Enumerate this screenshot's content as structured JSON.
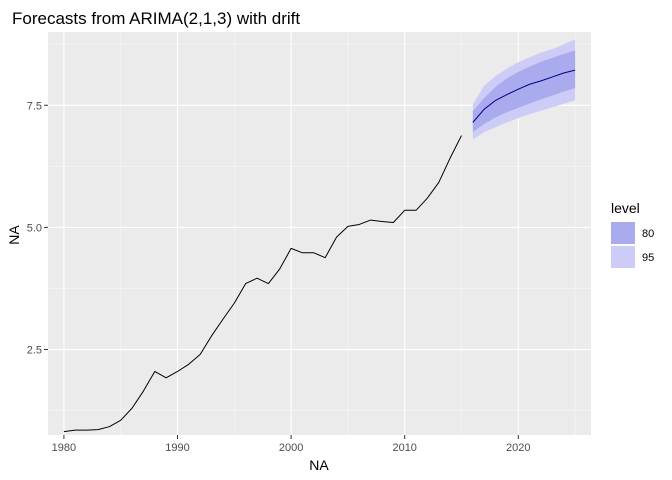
{
  "chart_data": {
    "type": "line",
    "title": "Forecasts from ARIMA(2,1,3) with drift",
    "xlabel": "NA",
    "ylabel": "NA",
    "xlim": [
      1978.6,
      2026.4
    ],
    "ylim": [
      0.75,
      9.0
    ],
    "x_ticks": [
      {
        "value": 1980,
        "label": "1980"
      },
      {
        "value": 1990,
        "label": "1990"
      },
      {
        "value": 2000,
        "label": "2000"
      },
      {
        "value": 2010,
        "label": "2010"
      },
      {
        "value": 2020,
        "label": "2020"
      }
    ],
    "y_ticks": [
      {
        "value": 2.5,
        "label": "2.5"
      },
      {
        "value": 5.0,
        "label": "5.0"
      },
      {
        "value": 7.5,
        "label": "7.5"
      }
    ],
    "grid": true,
    "series": [
      {
        "role": "observed",
        "color": "#000000",
        "x": [
          1980,
          1981,
          1982,
          1983,
          1984,
          1985,
          1986,
          1987,
          1988,
          1989,
          1990,
          1991,
          1992,
          1993,
          1994,
          1995,
          1996,
          1997,
          1998,
          1999,
          2000,
          2001,
          2002,
          2003,
          2004,
          2005,
          2006,
          2007,
          2008,
          2009,
          2010,
          2011,
          2012,
          2013,
          2014,
          2015
        ],
        "values": [
          0.82,
          0.85,
          0.85,
          0.86,
          0.92,
          1.05,
          1.3,
          1.65,
          2.05,
          1.92,
          2.05,
          2.2,
          2.4,
          2.78,
          3.12,
          3.45,
          3.85,
          3.96,
          3.85,
          4.15,
          4.57,
          4.48,
          4.48,
          4.38,
          4.8,
          5.02,
          5.06,
          5.15,
          5.12,
          5.1,
          5.35,
          5.35,
          5.6,
          5.92,
          6.42,
          6.88
        ]
      },
      {
        "role": "forecast",
        "color": "#00008b",
        "x": [
          2016,
          2017,
          2018,
          2019,
          2020,
          2021,
          2022,
          2023,
          2024,
          2025
        ],
        "values": [
          7.15,
          7.42,
          7.6,
          7.72,
          7.83,
          7.93,
          8.0,
          8.08,
          8.16,
          8.22
        ]
      }
    ],
    "intervals": [
      {
        "level": "95",
        "color": "#ccccf7",
        "x": [
          2016,
          2017,
          2018,
          2019,
          2020,
          2021,
          2022,
          2023,
          2024,
          2025
        ],
        "lower": [
          6.8,
          6.95,
          7.05,
          7.15,
          7.24,
          7.32,
          7.39,
          7.46,
          7.53,
          7.6
        ],
        "upper": [
          7.52,
          7.9,
          8.1,
          8.25,
          8.38,
          8.48,
          8.58,
          8.65,
          8.75,
          8.85
        ]
      },
      {
        "level": "80",
        "color": "#aaaaee",
        "x": [
          2016,
          2017,
          2018,
          2019,
          2020,
          2021,
          2022,
          2023,
          2024,
          2025
        ],
        "lower": [
          6.95,
          7.12,
          7.25,
          7.36,
          7.45,
          7.54,
          7.62,
          7.7,
          7.78,
          7.85
        ],
        "upper": [
          7.38,
          7.65,
          7.88,
          8.05,
          8.18,
          8.29,
          8.39,
          8.47,
          8.55,
          8.62
        ]
      }
    ],
    "legend": {
      "title": "level",
      "position": "right",
      "entries": [
        {
          "label": "80",
          "color": "#aaaaee"
        },
        {
          "label": "95",
          "color": "#ccccf7"
        }
      ]
    },
    "colors": {
      "panel_background": "#ebebeb",
      "grid_major": "#ffffff",
      "axis_text": "#4d4d4d",
      "title_text": "#000000"
    }
  }
}
